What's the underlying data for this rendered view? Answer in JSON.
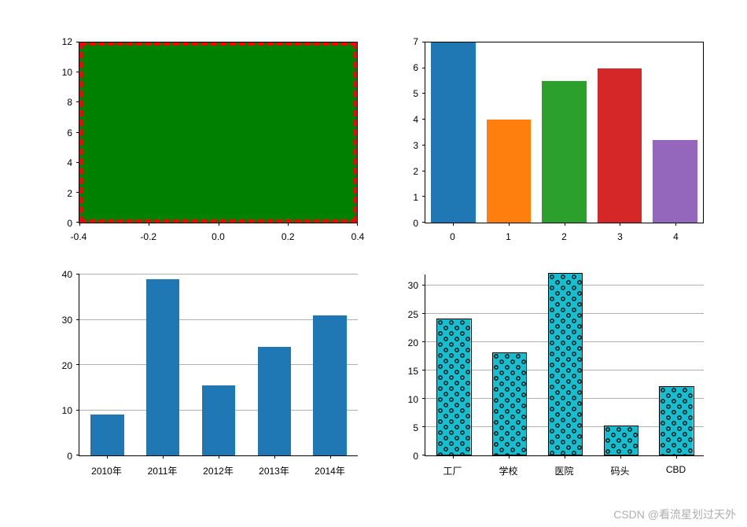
{
  "background_color": "#ffffff",
  "tick_font_size": 12,
  "tick_color": "#000000",
  "axis_color": "#000000",
  "watermark": "CSDN @看流星划过天外",
  "top_left": {
    "type": "bar",
    "fill_color": "#008000",
    "edge_color": "#ff0000",
    "edge_width": 4,
    "edge_dash": "dash-dot",
    "xlim": [
      -0.4,
      0.4
    ],
    "ylim": [
      0,
      12
    ],
    "xticks": [
      -0.4,
      -0.2,
      0.0,
      0.2,
      0.4
    ],
    "xtick_labels": [
      "-0.4",
      "-0.2",
      "0.0",
      "0.2",
      "0.4"
    ],
    "yticks": [
      0,
      2,
      4,
      6,
      8,
      10,
      12
    ],
    "bar": {
      "x": 0.0,
      "width": 0.8,
      "height": 12
    }
  },
  "top_right": {
    "type": "bar",
    "xlim": [
      -0.5,
      4.5
    ],
    "ylim": [
      0,
      7
    ],
    "xticks": [
      0,
      1,
      2,
      3,
      4
    ],
    "yticks": [
      0,
      1,
      2,
      3,
      4,
      5,
      6,
      7
    ],
    "bar_width": 0.8,
    "bars": [
      {
        "x": 0,
        "value": 7.0,
        "color": "#1f77b4"
      },
      {
        "x": 1,
        "value": 4.0,
        "color": "#ff7f0e"
      },
      {
        "x": 2,
        "value": 5.5,
        "color": "#2ca02c"
      },
      {
        "x": 3,
        "value": 6.0,
        "color": "#d62728"
      },
      {
        "x": 4,
        "value": 3.2,
        "color": "#9467bd"
      }
    ]
  },
  "bottom_left": {
    "type": "bar",
    "categories": [
      "2010年",
      "2011年",
      "2012年",
      "2013年",
      "2014年"
    ],
    "values": [
      9,
      39,
      15.5,
      24,
      31
    ],
    "bar_width": 0.6,
    "bar_color": "#1f77b4",
    "xlim": [
      -0.5,
      4.5
    ],
    "ylim": [
      0,
      40
    ],
    "yticks": [
      0,
      10,
      20,
      30,
      40
    ],
    "grid_color": "#b0b0b0",
    "spines": {
      "top": false,
      "right": false,
      "left": true,
      "bottom": true
    }
  },
  "bottom_right": {
    "type": "bar",
    "categories": [
      "工厂",
      "学校",
      "医院",
      "码头",
      "CBD"
    ],
    "values": [
      24,
      18,
      32,
      5,
      12
    ],
    "bar_width": 0.6,
    "bar_color": "#17becf",
    "hatch": "o",
    "hatch_color": "#000000",
    "edge_color": "#000000",
    "xlim": [
      -0.5,
      4.5
    ],
    "ylim": [
      0,
      32
    ],
    "yticks": [
      0,
      5,
      10,
      15,
      20,
      25,
      30
    ],
    "grid_color": "#b0b0b0",
    "spines": {
      "top": false,
      "right": false,
      "left": true,
      "bottom": true
    }
  }
}
